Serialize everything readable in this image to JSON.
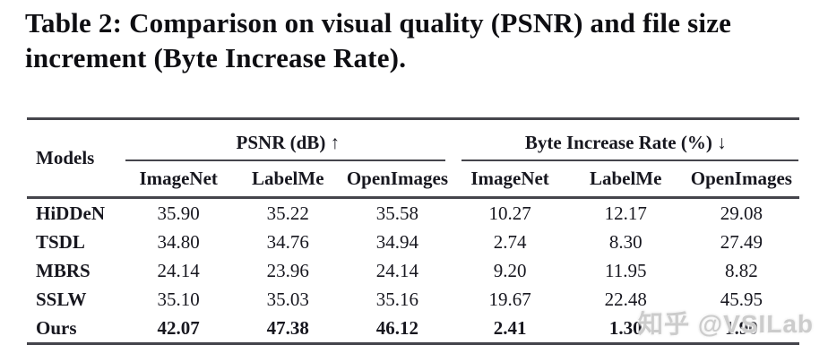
{
  "caption": "Table 2: Comparison on visual quality (PSNR) and file size increment (Byte Increase Rate).",
  "table": {
    "models_header": "Models",
    "groups": [
      {
        "label": "PSNR (dB) ↑"
      },
      {
        "label": "Byte Increase Rate (%) ↓"
      }
    ],
    "sub_headers": [
      "ImageNet",
      "LabelMe",
      "OpenImages",
      "ImageNet",
      "LabelMe",
      "OpenImages"
    ],
    "rows": [
      {
        "model": "HiDDeN",
        "values": [
          "35.90",
          "35.22",
          "35.58",
          "10.27",
          "12.17",
          "29.08"
        ]
      },
      {
        "model": "TSDL",
        "values": [
          "34.80",
          "34.76",
          "34.94",
          "2.74",
          "8.30",
          "27.49"
        ]
      },
      {
        "model": "MBRS",
        "values": [
          "24.14",
          "23.96",
          "24.14",
          "9.20",
          "11.95",
          "8.82"
        ]
      },
      {
        "model": "SSLW",
        "values": [
          "35.10",
          "35.03",
          "35.16",
          "19.67",
          "22.48",
          "45.95"
        ]
      },
      {
        "model": "Ours",
        "values": [
          "42.07",
          "47.38",
          "46.12",
          "2.41",
          "1.30",
          "1.90"
        ]
      }
    ]
  },
  "watermark": {
    "text": "知乎 @VSILab"
  }
}
